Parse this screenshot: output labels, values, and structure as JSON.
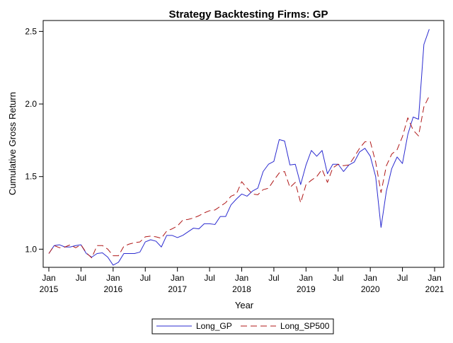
{
  "chart_data": {
    "type": "line",
    "title": "Strategy Backtesting  Firms: GP",
    "xlabel": "Year",
    "ylabel": "Cumulative Gross Return",
    "x_range": [
      "2015-01",
      "2021-01"
    ],
    "ylim": [
      0.875,
      2.575
    ],
    "y_ticks": [
      1.0,
      1.5,
      2.0,
      2.5
    ],
    "y_tick_labels": [
      "1.0",
      "1.5",
      "2.0",
      "2.5"
    ],
    "x_ticks": [
      {
        "date": "2015-01",
        "month": "Jan",
        "year": "2015"
      },
      {
        "date": "2015-07",
        "month": "Jul",
        "year": ""
      },
      {
        "date": "2016-01",
        "month": "Jan",
        "year": "2016"
      },
      {
        "date": "2016-07",
        "month": "Jul",
        "year": ""
      },
      {
        "date": "2017-01",
        "month": "Jan",
        "year": "2017"
      },
      {
        "date": "2017-07",
        "month": "Jul",
        "year": ""
      },
      {
        "date": "2018-01",
        "month": "Jan",
        "year": "2018"
      },
      {
        "date": "2018-07",
        "month": "Jul",
        "year": ""
      },
      {
        "date": "2019-01",
        "month": "Jan",
        "year": "2019"
      },
      {
        "date": "2019-07",
        "month": "Jul",
        "year": ""
      },
      {
        "date": "2020-01",
        "month": "Jan",
        "year": "2020"
      },
      {
        "date": "2020-07",
        "month": "Jul",
        "year": ""
      },
      {
        "date": "2021-01",
        "month": "Jan",
        "year": "2021"
      }
    ],
    "x": [
      "2015-01",
      "2015-02",
      "2015-03",
      "2015-04",
      "2015-05",
      "2015-06",
      "2015-07",
      "2015-08",
      "2015-09",
      "2015-10",
      "2015-11",
      "2015-12",
      "2016-01",
      "2016-02",
      "2016-03",
      "2016-04",
      "2016-05",
      "2016-06",
      "2016-07",
      "2016-08",
      "2016-09",
      "2016-10",
      "2016-11",
      "2016-12",
      "2017-01",
      "2017-02",
      "2017-03",
      "2017-04",
      "2017-05",
      "2017-06",
      "2017-07",
      "2017-08",
      "2017-09",
      "2017-10",
      "2017-11",
      "2017-12",
      "2018-01",
      "2018-02",
      "2018-03",
      "2018-04",
      "2018-05",
      "2018-06",
      "2018-07",
      "2018-08",
      "2018-09",
      "2018-10",
      "2018-11",
      "2018-12",
      "2019-01",
      "2019-02",
      "2019-03",
      "2019-04",
      "2019-05",
      "2019-06",
      "2019-07",
      "2019-08",
      "2019-09",
      "2019-10",
      "2019-11",
      "2019-12",
      "2020-01",
      "2020-02",
      "2020-03",
      "2020-04",
      "2020-05",
      "2020-06",
      "2020-07",
      "2020-08",
      "2020-09",
      "2020-10",
      "2020-11",
      "2020-12"
    ],
    "series": [
      {
        "name": "Long_GP",
        "color": "#2b2bd0",
        "dash": "solid",
        "values": [
          0.97,
          1.025,
          1.03,
          1.015,
          1.015,
          1.025,
          1.03,
          0.97,
          0.945,
          0.97,
          0.975,
          0.945,
          0.89,
          0.91,
          0.97,
          0.97,
          0.97,
          0.98,
          1.05,
          1.065,
          1.055,
          1.015,
          1.095,
          1.095,
          1.08,
          1.095,
          1.12,
          1.145,
          1.14,
          1.175,
          1.175,
          1.17,
          1.225,
          1.225,
          1.305,
          1.345,
          1.38,
          1.365,
          1.4,
          1.42,
          1.535,
          1.585,
          1.605,
          1.755,
          1.745,
          1.58,
          1.585,
          1.445,
          1.58,
          1.68,
          1.64,
          1.68,
          1.52,
          1.585,
          1.585,
          1.535,
          1.58,
          1.6,
          1.67,
          1.695,
          1.64,
          1.5,
          1.15,
          1.4,
          1.555,
          1.635,
          1.59,
          1.79,
          1.91,
          1.895,
          2.41,
          2.515
        ]
      },
      {
        "name": "Long_SP500",
        "color": "#b01818",
        "dash": "dashed",
        "values": [
          0.97,
          1.025,
          1.01,
          1.015,
          1.03,
          1.01,
          1.03,
          0.975,
          0.94,
          1.025,
          1.025,
          1.0,
          0.955,
          0.955,
          1.02,
          1.035,
          1.045,
          1.05,
          1.085,
          1.09,
          1.085,
          1.075,
          1.125,
          1.14,
          1.16,
          1.2,
          1.205,
          1.215,
          1.23,
          1.25,
          1.265,
          1.27,
          1.295,
          1.32,
          1.365,
          1.38,
          1.465,
          1.42,
          1.38,
          1.375,
          1.41,
          1.42,
          1.475,
          1.525,
          1.535,
          1.425,
          1.46,
          1.32,
          1.445,
          1.475,
          1.5,
          1.55,
          1.46,
          1.56,
          1.585,
          1.575,
          1.58,
          1.635,
          1.695,
          1.74,
          1.74,
          1.6,
          1.39,
          1.575,
          1.655,
          1.685,
          1.775,
          1.905,
          1.82,
          1.78,
          1.98,
          2.055
        ]
      }
    ],
    "legend": {
      "placement": "bottom-center",
      "entries": [
        "Long_GP",
        "Long_SP500"
      ]
    },
    "grid": false
  }
}
